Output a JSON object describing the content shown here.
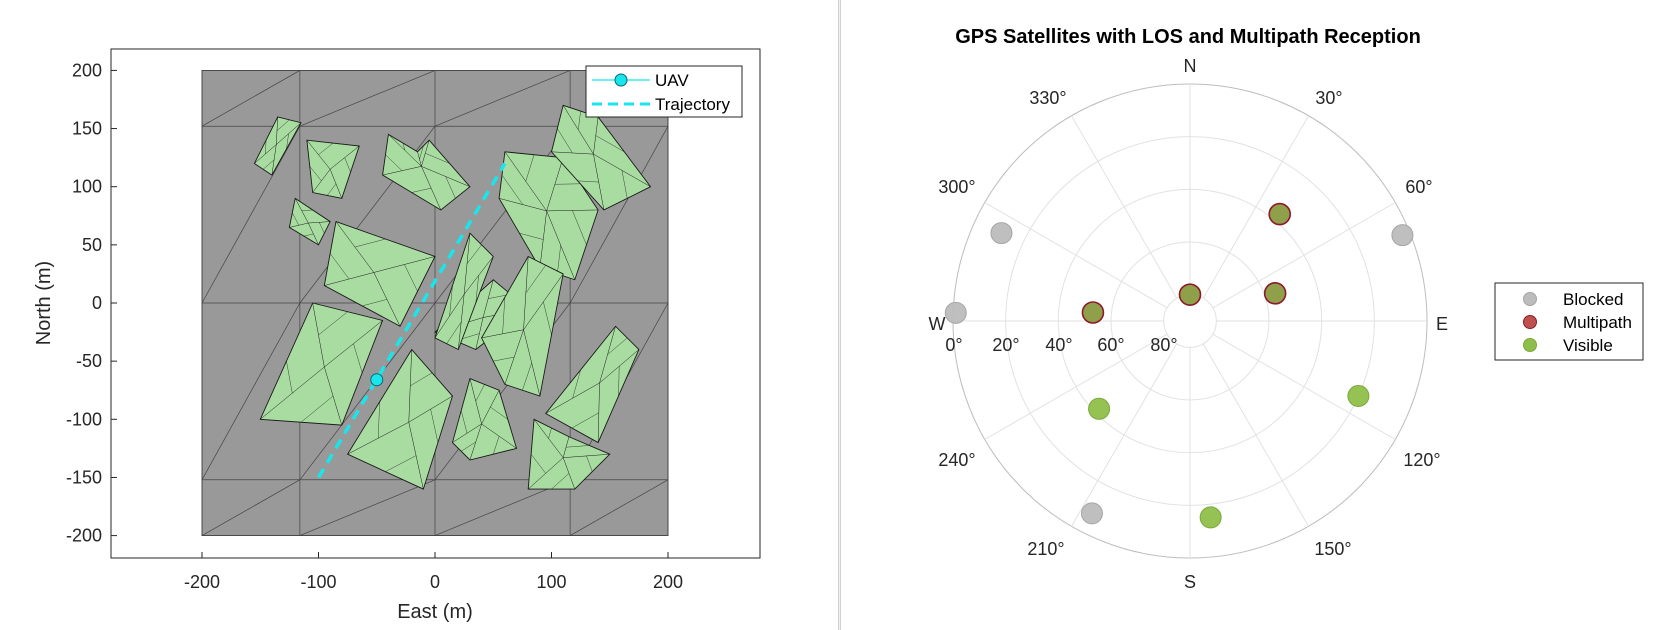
{
  "chart_data": [
    {
      "type": "map3d-topview",
      "title": "",
      "xlabel": "East (m)",
      "ylabel": "North (m)",
      "xlim": [
        -280,
        280
      ],
      "ylim": [
        -220,
        220
      ],
      "xticks": [
        "-200",
        "-100",
        "0",
        "100",
        "200"
      ],
      "yticks": [
        "200",
        "150",
        "100",
        "50",
        "0",
        "-50",
        "-100",
        "-150",
        "-200"
      ],
      "ground_extent": [
        [
          -200,
          200
        ],
        [
          -200,
          200
        ]
      ],
      "ground_color": "#999999",
      "building_color": "#a8dca0",
      "trajectory": {
        "name": "Trajectory",
        "color": "#19e6ec",
        "points": [
          [
            -100,
            -150
          ],
          [
            60,
            120
          ]
        ]
      },
      "uav": {
        "name": "UAV",
        "color": "#19e6ec",
        "position": [
          -50,
          -66
        ]
      },
      "buildings": [
        [
          [
            -135,
            160
          ],
          [
            -115,
            155
          ],
          [
            -140,
            110
          ],
          [
            -155,
            120
          ]
        ],
        [
          [
            -110,
            140
          ],
          [
            -65,
            135
          ],
          [
            -80,
            90
          ],
          [
            -105,
            95
          ]
        ],
        [
          [
            -40,
            145
          ],
          [
            -15,
            130
          ],
          [
            -5,
            140
          ],
          [
            30,
            100
          ],
          [
            5,
            80
          ],
          [
            -45,
            110
          ]
        ],
        [
          [
            -120,
            90
          ],
          [
            -90,
            70
          ],
          [
            -100,
            50
          ],
          [
            -125,
            65
          ]
        ],
        [
          [
            -85,
            70
          ],
          [
            0,
            40
          ],
          [
            -30,
            -20
          ],
          [
            -95,
            15
          ]
        ],
        [
          [
            -105,
            0
          ],
          [
            -45,
            -15
          ],
          [
            -80,
            -105
          ],
          [
            -150,
            -100
          ]
        ],
        [
          [
            50,
            20
          ],
          [
            80,
            -5
          ],
          [
            35,
            -40
          ],
          [
            0,
            -25
          ]
        ],
        [
          [
            30,
            60
          ],
          [
            50,
            40
          ],
          [
            20,
            -40
          ],
          [
            0,
            -30
          ]
        ],
        [
          [
            60,
            130
          ],
          [
            110,
            125
          ],
          [
            140,
            80
          ],
          [
            120,
            20
          ],
          [
            90,
            30
          ],
          [
            55,
            90
          ]
        ],
        [
          [
            110,
            170
          ],
          [
            140,
            160
          ],
          [
            185,
            100
          ],
          [
            145,
            80
          ],
          [
            100,
            130
          ]
        ],
        [
          [
            80,
            40
          ],
          [
            110,
            25
          ],
          [
            90,
            -80
          ],
          [
            60,
            -70
          ],
          [
            40,
            -30
          ]
        ],
        [
          [
            -20,
            -40
          ],
          [
            15,
            -80
          ],
          [
            -10,
            -160
          ],
          [
            -75,
            -130
          ]
        ],
        [
          [
            30,
            -65
          ],
          [
            55,
            -75
          ],
          [
            70,
            -125
          ],
          [
            30,
            -135
          ],
          [
            15,
            -120
          ]
        ],
        [
          [
            155,
            -20
          ],
          [
            175,
            -40
          ],
          [
            140,
            -120
          ],
          [
            95,
            -95
          ]
        ],
        [
          [
            85,
            -100
          ],
          [
            115,
            -115
          ],
          [
            150,
            -130
          ],
          [
            120,
            -160
          ],
          [
            80,
            -160
          ]
        ]
      ]
    },
    {
      "type": "skyplot",
      "title": "GPS Satellites with LOS and Multipath Reception",
      "direction_labels": {
        "n": "N",
        "e": "E",
        "s": "S",
        "w": "W"
      },
      "azimuth_labels": [
        "330°",
        "30°",
        "60°",
        "300°",
        "240°",
        "120°",
        "210°",
        "150°"
      ],
      "elevation_labels": [
        "0°",
        "20°",
        "40°",
        "60°",
        "80°"
      ],
      "legend": [
        {
          "name": "Blocked",
          "color": "#b9b9b9"
        },
        {
          "name": "Multipath",
          "color": "#c0504d"
        },
        {
          "name": "Visible",
          "color": "#8fbf4a"
        }
      ],
      "satellites": [
        {
          "az": 295,
          "el": 11,
          "status": "Blocked"
        },
        {
          "az": 68,
          "el": 3,
          "status": "Blocked"
        },
        {
          "az": 272,
          "el": 1,
          "status": "Blocked"
        },
        {
          "az": 207,
          "el": 8,
          "status": "Blocked"
        },
        {
          "az": 40,
          "el": 37,
          "status": "Multipath"
        },
        {
          "az": 72,
          "el": 56,
          "status": "Multipath"
        },
        {
          "az": 275,
          "el": 53,
          "status": "Multipath"
        },
        {
          "az": 0,
          "el": 80,
          "status": "Multipath"
        },
        {
          "az": 114,
          "el": 20,
          "status": "Visible"
        },
        {
          "az": 226,
          "el": 42,
          "status": "Visible"
        },
        {
          "az": 174,
          "el": 15,
          "status": "Visible"
        }
      ]
    }
  ]
}
